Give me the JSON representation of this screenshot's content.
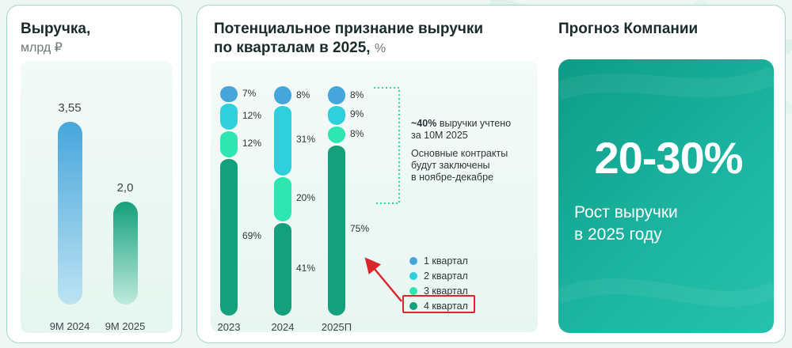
{
  "revenue": {
    "title": "Выручка,",
    "unit": "млрд ₽"
  },
  "quarters_section": {
    "title_line1": "Потенциальное признание выручки",
    "title_line2": "по кварталам в 2025,",
    "unit": "%",
    "note": {
      "bold": "~40%",
      "line1_rest": "выручки учтено",
      "line2": "за 10М 2025",
      "line3": "Основные контракты",
      "line4": "будут заключены",
      "line5": "в ноябре-декабре"
    }
  },
  "forecast": {
    "title": "Прогноз Компании",
    "value": "20-30%",
    "line1": "Рост выручки",
    "line2": "в 2025 году"
  },
  "colors": {
    "q1": "#46a6dc",
    "q2": "#2fd0dc",
    "q3": "#2ee6b0",
    "q4": "#14a07a",
    "accent_red": "#d8262a",
    "panel_border": "#9ed8c6"
  },
  "chart_data": [
    {
      "type": "bar",
      "title": "Выручка,",
      "ylabel": "млрд ₽",
      "categories": [
        "9М 2024",
        "9М 2025"
      ],
      "values": [
        3.55,
        2.0
      ],
      "value_labels": [
        "3,55",
        "2,0"
      ],
      "ylim": [
        0,
        4.4
      ],
      "grid": false
    },
    {
      "type": "bar",
      "stacked": true,
      "title": "Потенциальное признание выручки по кварталам в 2025, %",
      "categories": [
        "2023",
        "2024",
        "2025П"
      ],
      "series": [
        {
          "name": "1 квартал",
          "values": [
            7,
            8,
            8
          ],
          "labels": [
            "7%",
            "8%",
            "8%"
          ]
        },
        {
          "name": "2 квартал",
          "values": [
            12,
            31,
            9
          ],
          "labels": [
            "12%",
            "31%",
            "9%"
          ]
        },
        {
          "name": "3 квартал",
          "values": [
            12,
            20,
            8
          ],
          "labels": [
            "12%",
            "20%",
            "8%"
          ]
        },
        {
          "name": "4 квартал",
          "values": [
            69,
            41,
            75
          ],
          "labels": [
            "69%",
            "41%",
            "75%"
          ]
        }
      ],
      "ylim": [
        0,
        100
      ],
      "legend_position": "bottom-right",
      "highlighted_legend_item": "4 квартал"
    }
  ]
}
